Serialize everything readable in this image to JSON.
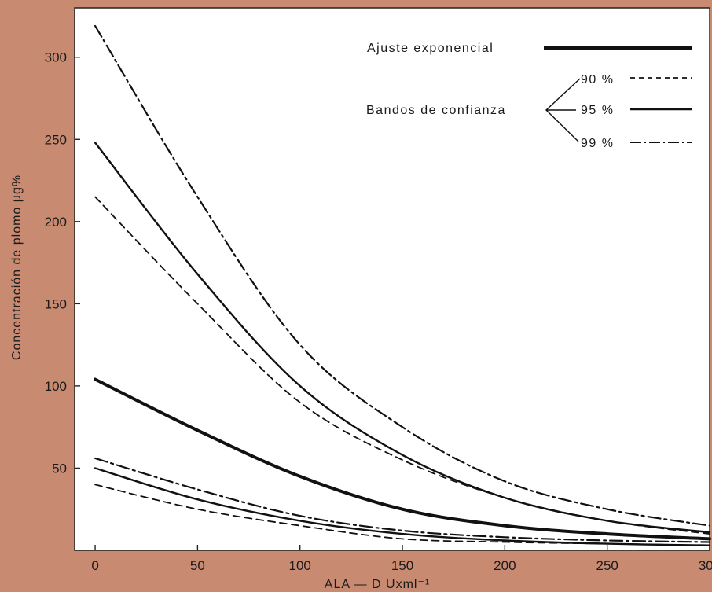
{
  "chart_data": {
    "type": "line",
    "title": "",
    "xlabel": "ALA — D   Uxml⁻¹",
    "ylabel": "Concentración   de   plomo   µg%",
    "xlim": [
      -10,
      300
    ],
    "ylim": [
      0,
      330
    ],
    "x_ticks": [
      0,
      50,
      100,
      150,
      200,
      250,
      300
    ],
    "y_ticks": [
      50,
      100,
      150,
      200,
      250,
      300
    ],
    "grid": false,
    "legend_position": "top-right",
    "legend": {
      "fit_label": "Ajuste  exponencial",
      "bands_label": "Bandos  de  confianza",
      "levels": [
        "90 %",
        "95 %",
        "99 %"
      ]
    },
    "series": [
      {
        "name": "Ajuste exponencial",
        "style": "thick-solid",
        "x": [
          0,
          50,
          100,
          150,
          200,
          250,
          300
        ],
        "y": [
          104,
          73,
          45,
          25,
          15,
          10,
          7
        ]
      },
      {
        "name": "90 %",
        "band": "upper",
        "style": "dashed",
        "x": [
          0,
          50,
          100,
          150,
          200,
          250,
          300
        ],
        "y": [
          215,
          150,
          90,
          55,
          32,
          18,
          10
        ]
      },
      {
        "name": "95 %",
        "band": "upper",
        "style": "solid",
        "x": [
          0,
          50,
          100,
          150,
          200,
          250,
          300
        ],
        "y": [
          248,
          168,
          100,
          58,
          32,
          18,
          11
        ]
      },
      {
        "name": "99 %",
        "band": "upper",
        "style": "dash-dot",
        "x": [
          0,
          50,
          100,
          150,
          200,
          250,
          300
        ],
        "y": [
          319,
          215,
          125,
          75,
          42,
          25,
          15
        ]
      },
      {
        "name": "90 %",
        "band": "lower",
        "style": "dashed",
        "x": [
          0,
          50,
          100,
          150,
          200,
          250,
          300
        ],
        "y": [
          40,
          25,
          15,
          7,
          5,
          4,
          3
        ]
      },
      {
        "name": "95 %",
        "band": "lower",
        "style": "solid",
        "x": [
          0,
          50,
          100,
          150,
          200,
          250,
          300
        ],
        "y": [
          50,
          31,
          18,
          10,
          6,
          4,
          3
        ]
      },
      {
        "name": "99 %",
        "band": "lower",
        "style": "dash-dot",
        "x": [
          0,
          50,
          100,
          150,
          200,
          250,
          300
        ],
        "y": [
          56,
          37,
          21,
          12,
          8,
          6,
          5
        ]
      }
    ]
  }
}
